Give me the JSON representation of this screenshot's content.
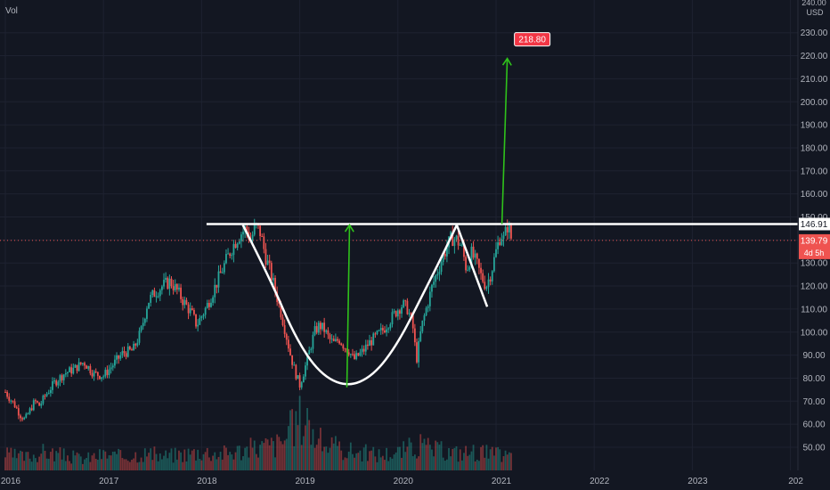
{
  "volume_label": "Vol",
  "currency": "USD",
  "header_value": "240.00",
  "resistance_tag": "146.91",
  "last_price_tag": "139.79",
  "countdown_tag": "4d 5h",
  "target_tag": "218.80",
  "colors": {
    "background": "#131722",
    "grid": "#1e2230",
    "up": "#26a69a",
    "down": "#ef5350",
    "pattern": "#ffffff",
    "arrow": "#2fc21b",
    "target_badge": "#f23645"
  },
  "chart_data": {
    "type": "candlestick",
    "title": "",
    "x_ticks": [
      "2016",
      "2017",
      "2018",
      "2019",
      "2020",
      "2021",
      "2022",
      "2023",
      "202"
    ],
    "y_ticks": [
      "50.00",
      "60.00",
      "70.00",
      "80.00",
      "90.00",
      "100.00",
      "110.00",
      "120.00",
      "130.00",
      "140.00",
      "150.00",
      "160.00",
      "170.00",
      "180.00",
      "190.00",
      "200.00",
      "210.00",
      "220.00",
      "230.00"
    ],
    "ylim": [
      45,
      242
    ],
    "xlim": [
      2016.0,
      2024.0
    ],
    "price_series": [
      {
        "x": 2016.0,
        "y": 74
      },
      {
        "x": 2016.05,
        "y": 71
      },
      {
        "x": 2016.1,
        "y": 68
      },
      {
        "x": 2016.15,
        "y": 64
      },
      {
        "x": 2016.2,
        "y": 62
      },
      {
        "x": 2016.25,
        "y": 66
      },
      {
        "x": 2016.3,
        "y": 70
      },
      {
        "x": 2016.35,
        "y": 68
      },
      {
        "x": 2016.4,
        "y": 72
      },
      {
        "x": 2016.5,
        "y": 78
      },
      {
        "x": 2016.6,
        "y": 82
      },
      {
        "x": 2016.7,
        "y": 84
      },
      {
        "x": 2016.8,
        "y": 87
      },
      {
        "x": 2016.9,
        "y": 82
      },
      {
        "x": 2017.0,
        "y": 81
      },
      {
        "x": 2017.1,
        "y": 86
      },
      {
        "x": 2017.2,
        "y": 91
      },
      {
        "x": 2017.3,
        "y": 92
      },
      {
        "x": 2017.38,
        "y": 100
      },
      {
        "x": 2017.45,
        "y": 113
      },
      {
        "x": 2017.52,
        "y": 117
      },
      {
        "x": 2017.6,
        "y": 120
      },
      {
        "x": 2017.68,
        "y": 122
      },
      {
        "x": 2017.75,
        "y": 118
      },
      {
        "x": 2017.82,
        "y": 113
      },
      {
        "x": 2017.9,
        "y": 108
      },
      {
        "x": 2017.95,
        "y": 103
      },
      {
        "x": 2018.05,
        "y": 111
      },
      {
        "x": 2018.15,
        "y": 121
      },
      {
        "x": 2018.22,
        "y": 128
      },
      {
        "x": 2018.3,
        "y": 136
      },
      {
        "x": 2018.38,
        "y": 142
      },
      {
        "x": 2018.45,
        "y": 145
      },
      {
        "x": 2018.5,
        "y": 140
      },
      {
        "x": 2018.55,
        "y": 146
      },
      {
        "x": 2018.6,
        "y": 143
      },
      {
        "x": 2018.65,
        "y": 133
      },
      {
        "x": 2018.7,
        "y": 126
      },
      {
        "x": 2018.75,
        "y": 118
      },
      {
        "x": 2018.8,
        "y": 110
      },
      {
        "x": 2018.85,
        "y": 101
      },
      {
        "x": 2018.9,
        "y": 91
      },
      {
        "x": 2018.95,
        "y": 83
      },
      {
        "x": 2019.0,
        "y": 77
      },
      {
        "x": 2019.05,
        "y": 84
      },
      {
        "x": 2019.1,
        "y": 92
      },
      {
        "x": 2019.15,
        "y": 100
      },
      {
        "x": 2019.2,
        "y": 103
      },
      {
        "x": 2019.25,
        "y": 101
      },
      {
        "x": 2019.3,
        "y": 97
      },
      {
        "x": 2019.35,
        "y": 95
      },
      {
        "x": 2019.4,
        "y": 97
      },
      {
        "x": 2019.45,
        "y": 94
      },
      {
        "x": 2019.5,
        "y": 92
      },
      {
        "x": 2019.55,
        "y": 88
      },
      {
        "x": 2019.6,
        "y": 90
      },
      {
        "x": 2019.65,
        "y": 92
      },
      {
        "x": 2019.7,
        "y": 95
      },
      {
        "x": 2019.75,
        "y": 97
      },
      {
        "x": 2019.8,
        "y": 99
      },
      {
        "x": 2019.85,
        "y": 101
      },
      {
        "x": 2019.9,
        "y": 104
      },
      {
        "x": 2019.95,
        "y": 107
      },
      {
        "x": 2020.0,
        "y": 110
      },
      {
        "x": 2020.05,
        "y": 112
      },
      {
        "x": 2020.1,
        "y": 110
      },
      {
        "x": 2020.15,
        "y": 103
      },
      {
        "x": 2020.19,
        "y": 88
      },
      {
        "x": 2020.24,
        "y": 102
      },
      {
        "x": 2020.3,
        "y": 112
      },
      {
        "x": 2020.35,
        "y": 120
      },
      {
        "x": 2020.4,
        "y": 126
      },
      {
        "x": 2020.45,
        "y": 132
      },
      {
        "x": 2020.5,
        "y": 137
      },
      {
        "x": 2020.55,
        "y": 141
      },
      {
        "x": 2020.6,
        "y": 140
      },
      {
        "x": 2020.65,
        "y": 137
      },
      {
        "x": 2020.7,
        "y": 127
      },
      {
        "x": 2020.75,
        "y": 134
      },
      {
        "x": 2020.8,
        "y": 130
      },
      {
        "x": 2020.85,
        "y": 124
      },
      {
        "x": 2020.9,
        "y": 120
      },
      {
        "x": 2020.95,
        "y": 126
      },
      {
        "x": 2021.0,
        "y": 135
      },
      {
        "x": 2021.05,
        "y": 143
      },
      {
        "x": 2021.08,
        "y": 140
      },
      {
        "x": 2021.12,
        "y": 147
      },
      {
        "x": 2021.16,
        "y": 139.79
      }
    ],
    "volume_series": [
      {
        "x": 2016.0,
        "v": 0.3
      },
      {
        "x": 2016.2,
        "v": 0.25
      },
      {
        "x": 2016.4,
        "v": 0.35
      },
      {
        "x": 2016.6,
        "v": 0.28
      },
      {
        "x": 2016.8,
        "v": 0.22
      },
      {
        "x": 2017.0,
        "v": 0.3
      },
      {
        "x": 2017.2,
        "v": 0.26
      },
      {
        "x": 2017.4,
        "v": 0.33
      },
      {
        "x": 2017.6,
        "v": 0.27
      },
      {
        "x": 2017.8,
        "v": 0.31
      },
      {
        "x": 2018.0,
        "v": 0.36
      },
      {
        "x": 2018.2,
        "v": 0.32
      },
      {
        "x": 2018.4,
        "v": 0.38
      },
      {
        "x": 2018.6,
        "v": 0.45
      },
      {
        "x": 2018.8,
        "v": 0.5
      },
      {
        "x": 2019.0,
        "v": 1.0
      },
      {
        "x": 2019.2,
        "v": 0.55
      },
      {
        "x": 2019.4,
        "v": 0.4
      },
      {
        "x": 2019.6,
        "v": 0.35
      },
      {
        "x": 2019.8,
        "v": 0.3
      },
      {
        "x": 2020.0,
        "v": 0.34
      },
      {
        "x": 2020.2,
        "v": 0.48
      },
      {
        "x": 2020.4,
        "v": 0.38
      },
      {
        "x": 2020.6,
        "v": 0.33
      },
      {
        "x": 2020.8,
        "v": 0.36
      },
      {
        "x": 2021.0,
        "v": 0.3
      },
      {
        "x": 2021.1,
        "v": 0.28
      }
    ],
    "resistance_level": 146.91,
    "last_price": 139.79,
    "target_price": 218.8,
    "cup_curve": [
      {
        "x": 2018.42,
        "y": 146.5
      },
      {
        "x": 2018.7,
        "y": 123
      },
      {
        "x": 2018.95,
        "y": 98
      },
      {
        "x": 2019.2,
        "y": 82
      },
      {
        "x": 2019.48,
        "y": 76
      },
      {
        "x": 2019.75,
        "y": 81
      },
      {
        "x": 2020.0,
        "y": 95
      },
      {
        "x": 2020.25,
        "y": 116
      },
      {
        "x": 2020.45,
        "y": 133
      },
      {
        "x": 2020.6,
        "y": 146.5
      }
    ],
    "handle": [
      {
        "x": 2020.6,
        "y": 146.5
      },
      {
        "x": 2020.91,
        "y": 111
      }
    ],
    "depth_arrow": {
      "x": 2019.48,
      "from": 76,
      "to": 146.5
    },
    "target_arrow": {
      "x": 2021.06,
      "from": 146.91,
      "to": 218.8
    }
  }
}
